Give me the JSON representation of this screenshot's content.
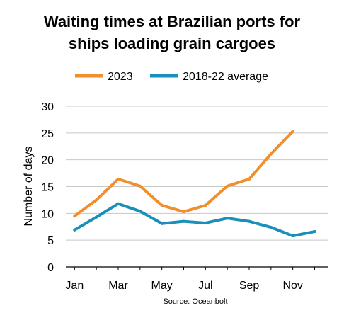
{
  "chart_data": {
    "type": "line",
    "title_lines": [
      "Waiting times at Brazilian ports for",
      "ships loading grain cargoes"
    ],
    "ylabel": "Number of days",
    "xlabel": "",
    "source": "Source: Oceanbolt",
    "legend_position": "top",
    "grid": true,
    "ylim": [
      0,
      30
    ],
    "yticks": [
      0,
      5,
      10,
      15,
      20,
      25,
      30
    ],
    "x": [
      1,
      2,
      3,
      4,
      5,
      6,
      7,
      8,
      9,
      10,
      11,
      12
    ],
    "xlim": [
      0.6,
      12.6
    ],
    "xtick_positions": [
      1,
      3,
      5,
      7,
      9,
      11
    ],
    "xtick_labels": [
      "Jan",
      "Mar",
      "May",
      "Jul",
      "Sep",
      "Nov"
    ],
    "series": [
      {
        "name": "2023",
        "color": "#f28e2b",
        "x": [
          1,
          2,
          3,
          4,
          5,
          6,
          7,
          8,
          9,
          10,
          11
        ],
        "values": [
          9.5,
          12.5,
          16.4,
          15.1,
          11.5,
          10.3,
          11.5,
          15.1,
          16.4,
          21.1,
          25.3
        ]
      },
      {
        "name": "2018-22 average",
        "color": "#1a8fb9",
        "x": [
          1,
          2,
          3,
          4,
          5,
          6,
          7,
          8,
          9,
          10,
          11,
          12
        ],
        "values": [
          6.9,
          9.3,
          11.8,
          10.4,
          8.1,
          8.5,
          8.2,
          9.1,
          8.5,
          7.4,
          5.8,
          6.6
        ]
      }
    ]
  }
}
